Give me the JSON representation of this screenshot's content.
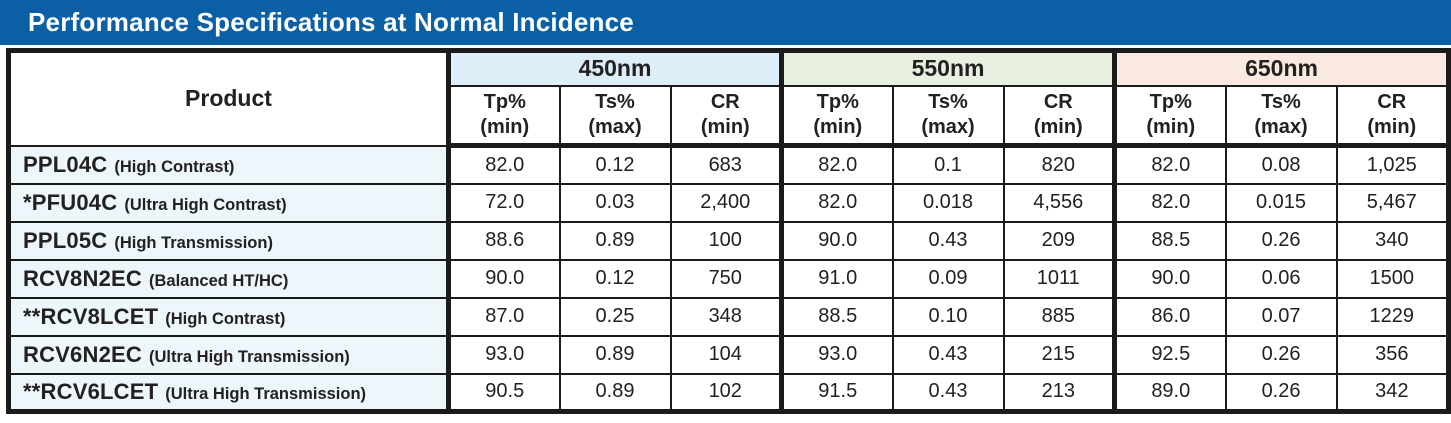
{
  "title": "Performance Specifications at Normal Incidence",
  "colors": {
    "title_bar_bg": "#0a5fa5",
    "title_text": "#ffffff",
    "border": "#1b1b1b",
    "product_column_bg": "#ecf6fb",
    "group_450_bg": "#ddeef9",
    "group_550_bg": "#e8f1e1",
    "group_650_bg": "#f9e9e1"
  },
  "table": {
    "product_header": "Product",
    "wavelength_groups": [
      {
        "label": "450nm",
        "bg": "#ddeef9"
      },
      {
        "label": "550nm",
        "bg": "#e8f1e1"
      },
      {
        "label": "650nm",
        "bg": "#f9e9e1"
      }
    ],
    "sub_headers": [
      {
        "line1": "Tp%",
        "line2": "(min)"
      },
      {
        "line1": "Ts%",
        "line2": "(max)"
      },
      {
        "line1": "CR",
        "line2": "(min)"
      }
    ],
    "rows": [
      {
        "product": "PPL04C",
        "variant": "(High Contrast)",
        "values": [
          "82.0",
          "0.12",
          "683",
          "82.0",
          "0.1",
          "820",
          "82.0",
          "0.08",
          "1,025"
        ]
      },
      {
        "product": "*PFU04C",
        "variant": "(Ultra High Contrast)",
        "values": [
          "72.0",
          "0.03",
          "2,400",
          "82.0",
          "0.018",
          "4,556",
          "82.0",
          "0.015",
          "5,467"
        ]
      },
      {
        "product": "PPL05C",
        "variant": "(High Transmission)",
        "values": [
          "88.6",
          "0.89",
          "100",
          "90.0",
          "0.43",
          "209",
          "88.5",
          "0.26",
          "340"
        ]
      },
      {
        "product": "RCV8N2EC",
        "variant": "(Balanced HT/HC)",
        "values": [
          "90.0",
          "0.12",
          "750",
          "91.0",
          "0.09",
          "1011",
          "90.0",
          "0.06",
          "1500"
        ]
      },
      {
        "product": "**RCV8LCET",
        "variant": "(High Contrast)",
        "values": [
          "87.0",
          "0.25",
          "348",
          "88.5",
          "0.10",
          "885",
          "86.0",
          "0.07",
          "1229"
        ]
      },
      {
        "product": "RCV6N2EC",
        "variant": "(Ultra High Transmission)",
        "values": [
          "93.0",
          "0.89",
          "104",
          "93.0",
          "0.43",
          "215",
          "92.5",
          "0.26",
          "356"
        ]
      },
      {
        "product": "**RCV6LCET",
        "variant": "(Ultra High Transmission)",
        "values": [
          "90.5",
          "0.89",
          "102",
          "91.5",
          "0.43",
          "213",
          "89.0",
          "0.26",
          "342"
        ]
      }
    ]
  }
}
